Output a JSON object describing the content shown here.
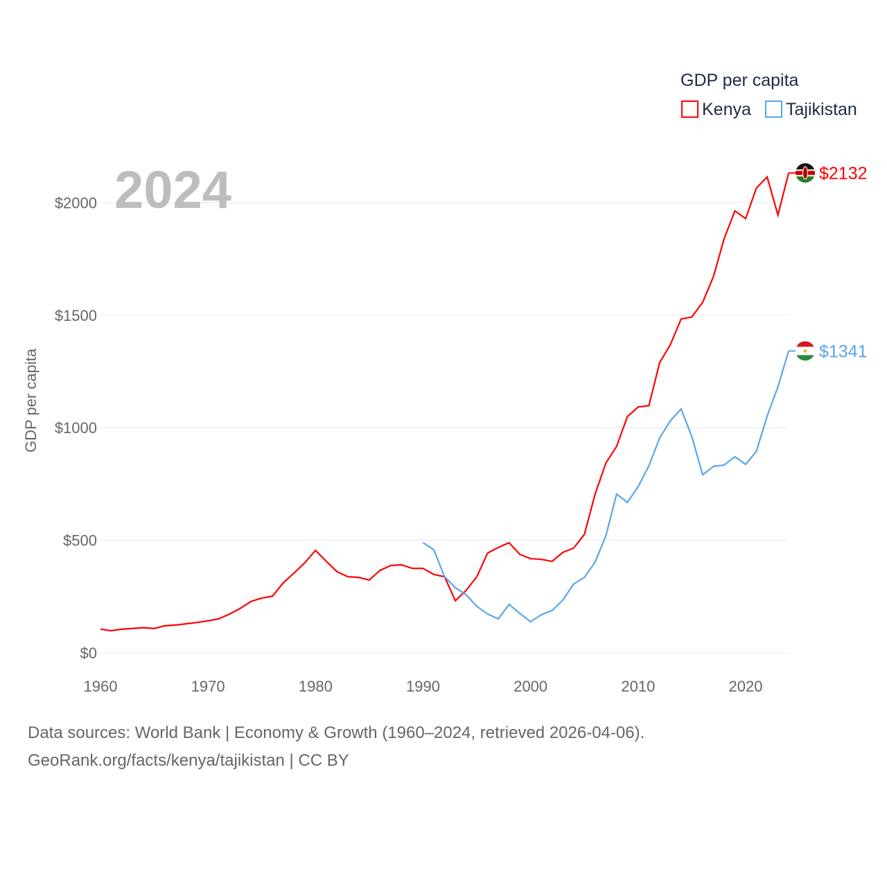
{
  "chart_data": {
    "type": "line",
    "year_label": "2024",
    "ylabel": "GDP per capita",
    "legend_title": "GDP per capita",
    "legend_position": "top-right",
    "xlim": [
      1960,
      2024
    ],
    "ylim": [
      0,
      2200
    ],
    "x_ticks": [
      1960,
      1970,
      1980,
      1990,
      2000,
      2010,
      2020
    ],
    "x_tick_labels": [
      "1960",
      "1970",
      "1980",
      "1990",
      "2000",
      "2010",
      "2020"
    ],
    "y_ticks": [
      0,
      500,
      1000,
      1500,
      2000
    ],
    "y_tick_labels": [
      "$0",
      "$500",
      "$1000",
      "$1500",
      "$2000"
    ],
    "grid": true,
    "series": [
      {
        "name": "Kenya",
        "color": "#ff0000",
        "end_label": "$2132",
        "flag": "kenya-flag",
        "start": 1960,
        "values": [
          105,
          98,
          105,
          108,
          111,
          108,
          120,
          123,
          129,
          135,
          142,
          151,
          172,
          197,
          228,
          243,
          252,
          311,
          354,
          400,
          455,
          406,
          360,
          338,
          335,
          323,
          366,
          388,
          391,
          375,
          375,
          348,
          338,
          231,
          277,
          338,
          443,
          468,
          489,
          437,
          418,
          415,
          406,
          446,
          465,
          526,
          705,
          843,
          917,
          1049,
          1092,
          1098,
          1289,
          1369,
          1483,
          1492,
          1557,
          1671,
          1840,
          1963,
          1929,
          2065,
          2114,
          1945,
          2132
        ]
      },
      {
        "name": "Tajikistan",
        "color": "#5aa5ea",
        "end_label": "$1341",
        "flag": "tajikistan-flag",
        "start": 1990,
        "values": [
          489,
          458,
          338,
          289,
          258,
          206,
          172,
          151,
          215,
          175,
          138,
          169,
          188,
          234,
          305,
          335,
          403,
          520,
          705,
          668,
          738,
          831,
          954,
          1031,
          1083,
          960,
          791,
          828,
          834,
          871,
          837,
          895,
          1052,
          1182,
          1341
        ]
      }
    ]
  },
  "footer": {
    "line1": "Data sources: World Bank | Economy & Growth (1960–2024, retrieved 2026-04-06).",
    "line2": "GeoRank.org/facts/kenya/tajikistan | CC BY"
  }
}
